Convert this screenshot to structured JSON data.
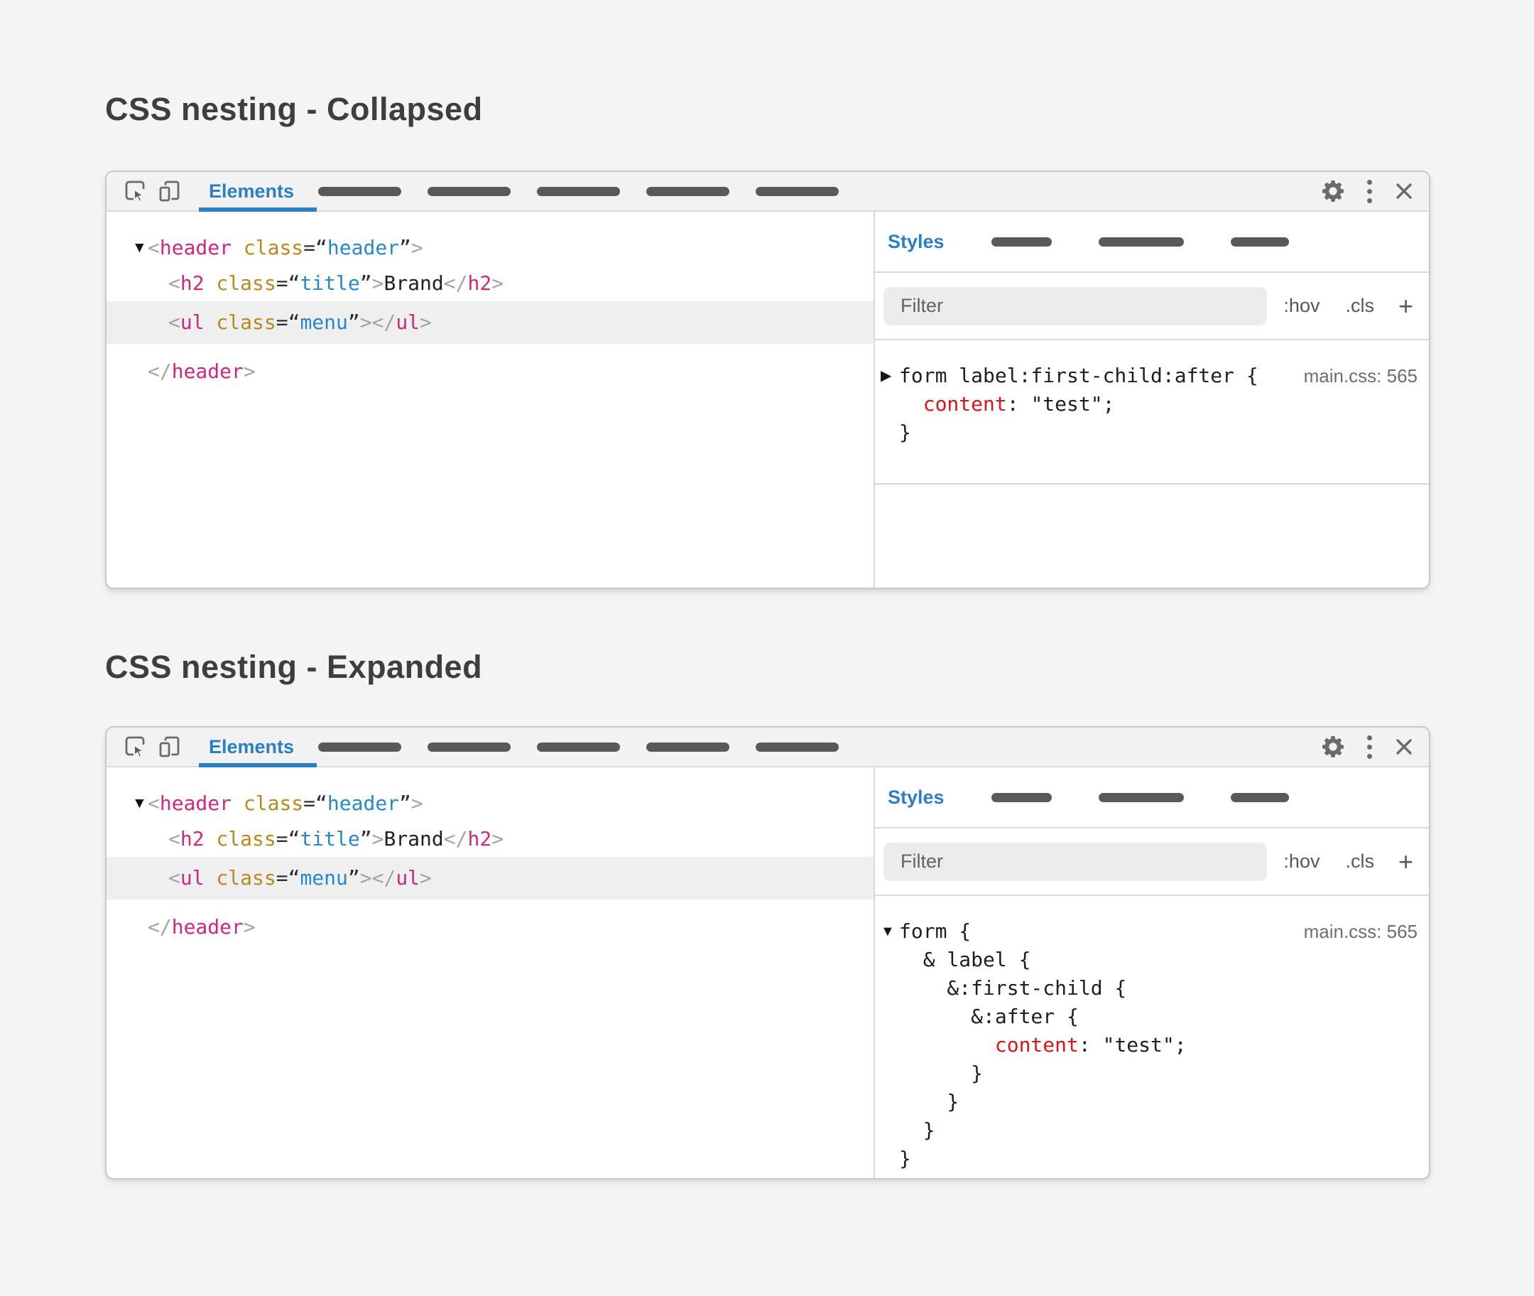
{
  "page": {
    "title_collapsed": "CSS nesting - Collapsed",
    "title_expanded": "CSS nesting - Expanded"
  },
  "toolbar": {
    "elements_tab": "Elements",
    "icons": {
      "inspect": "inspect-element",
      "device": "device-toolbar",
      "gear": "settings-gear",
      "kebab": "more-vertical",
      "close": "close-x"
    }
  },
  "styles_pane": {
    "styles_tab": "Styles",
    "filter_placeholder": "Filter",
    "hov_label": ":hov",
    "cls_label": ".cls",
    "plus_label": "+",
    "source_ref": "main.css: 565"
  },
  "colors": {
    "accent_blue": "#2b7fc3",
    "tag_pink": "#d0267f",
    "attr_gold": "#b8891f",
    "value_blue": "#2787c9",
    "property_red": "#da1414",
    "bracket_gray": "#a3a3a3",
    "selected_row_bg": "#efefef"
  },
  "tree": {
    "arrow_down": "▼",
    "header_open": [
      {
        "t": "ang",
        "s": "<"
      },
      {
        "t": "tag",
        "s": "header"
      },
      {
        "t": "txt",
        "s": " "
      },
      {
        "t": "attr",
        "s": "class"
      },
      {
        "t": "eq",
        "s": "=“"
      },
      {
        "t": "val",
        "s": "header"
      },
      {
        "t": "eq",
        "s": "”"
      },
      {
        "t": "ang",
        "s": ">"
      }
    ],
    "h2_line": [
      {
        "t": "ang",
        "s": "<"
      },
      {
        "t": "tag",
        "s": "h2"
      },
      {
        "t": "txt",
        "s": " "
      },
      {
        "t": "attr",
        "s": "class"
      },
      {
        "t": "eq",
        "s": "=“"
      },
      {
        "t": "val",
        "s": "title"
      },
      {
        "t": "eq",
        "s": "”"
      },
      {
        "t": "ang",
        "s": ">"
      },
      {
        "t": "txt",
        "s": "Brand"
      },
      {
        "t": "ang",
        "s": "</"
      },
      {
        "t": "tag",
        "s": "h2"
      },
      {
        "t": "ang",
        "s": ">"
      }
    ],
    "ul_line": [
      {
        "t": "ang",
        "s": "<"
      },
      {
        "t": "tag",
        "s": "ul"
      },
      {
        "t": "txt",
        "s": " "
      },
      {
        "t": "attr",
        "s": "class"
      },
      {
        "t": "eq",
        "s": "=“"
      },
      {
        "t": "val",
        "s": "menu"
      },
      {
        "t": "eq",
        "s": "”"
      },
      {
        "t": "ang",
        "s": ">"
      },
      {
        "t": "ang",
        "s": "</"
      },
      {
        "t": "tag",
        "s": "ul"
      },
      {
        "t": "ang",
        "s": ">"
      }
    ],
    "header_close": [
      {
        "t": "ang",
        "s": "</"
      },
      {
        "t": "tag",
        "s": "header"
      },
      {
        "t": "ang",
        "s": ">"
      }
    ]
  },
  "rules_collapsed": {
    "arrow": "▶",
    "l1": [
      {
        "t": "sel",
        "s": "form label:first-child:after {"
      }
    ],
    "l2": [
      {
        "t": "txt",
        "s": "  "
      },
      {
        "t": "prop",
        "s": "content"
      },
      {
        "t": "txt",
        "s": ": \"test\";"
      }
    ],
    "l3": [
      {
        "t": "txt",
        "s": "}"
      }
    ]
  },
  "rules_expanded": {
    "arrow": "▼",
    "l1": [
      {
        "t": "sel",
        "s": "form {"
      }
    ],
    "l2": [
      {
        "t": "sel",
        "s": "  & label {"
      }
    ],
    "l3": [
      {
        "t": "sel",
        "s": "    &:first-child {"
      }
    ],
    "l4": [
      {
        "t": "sel",
        "s": "      &:after {"
      }
    ],
    "l5": [
      {
        "t": "txt",
        "s": "        "
      },
      {
        "t": "prop",
        "s": "content"
      },
      {
        "t": "txt",
        "s": ": \"test\";"
      }
    ],
    "l6": [
      {
        "t": "txt",
        "s": "      }"
      }
    ],
    "l7": [
      {
        "t": "txt",
        "s": "    }"
      }
    ],
    "l8": [
      {
        "t": "txt",
        "s": "  }"
      }
    ],
    "l9": [
      {
        "t": "txt",
        "s": "}"
      }
    ]
  }
}
